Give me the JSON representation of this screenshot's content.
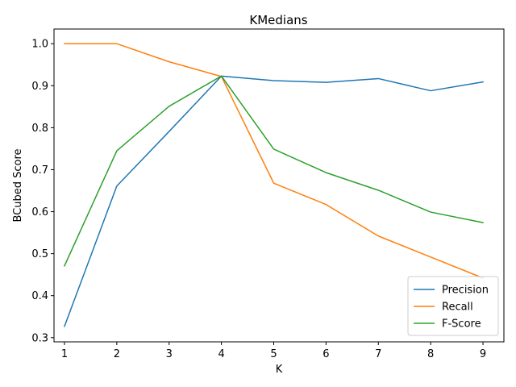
{
  "chart_data": {
    "type": "line",
    "title": "KMedians",
    "xlabel": "K",
    "ylabel": "BCubed Score",
    "x": [
      1,
      2,
      3,
      4,
      5,
      6,
      7,
      8,
      9
    ],
    "xlim": [
      0.8,
      9.4
    ],
    "ylim": [
      0.29,
      1.035
    ],
    "xticks": [
      "1",
      "2",
      "3",
      "4",
      "5",
      "6",
      "7",
      "8",
      "9"
    ],
    "yticks": [
      "0.3",
      "0.4",
      "0.5",
      "0.6",
      "0.7",
      "0.8",
      "0.9",
      "1.0"
    ],
    "grid": false,
    "legend_position": "lower-right",
    "series": [
      {
        "name": "Precision",
        "color": "#1f77b4",
        "values": [
          0.327,
          0.661,
          0.791,
          0.923,
          0.912,
          0.908,
          0.917,
          0.888,
          0.909
        ]
      },
      {
        "name": "Recall",
        "color": "#ff7f0e",
        "values": [
          1.0,
          1.0,
          0.957,
          0.922,
          0.668,
          0.617,
          0.542,
          0.492,
          0.442
        ]
      },
      {
        "name": "F-Score",
        "color": "#2ca02c",
        "values": [
          0.471,
          0.745,
          0.851,
          0.923,
          0.749,
          0.693,
          0.651,
          0.599,
          0.574
        ]
      }
    ]
  }
}
